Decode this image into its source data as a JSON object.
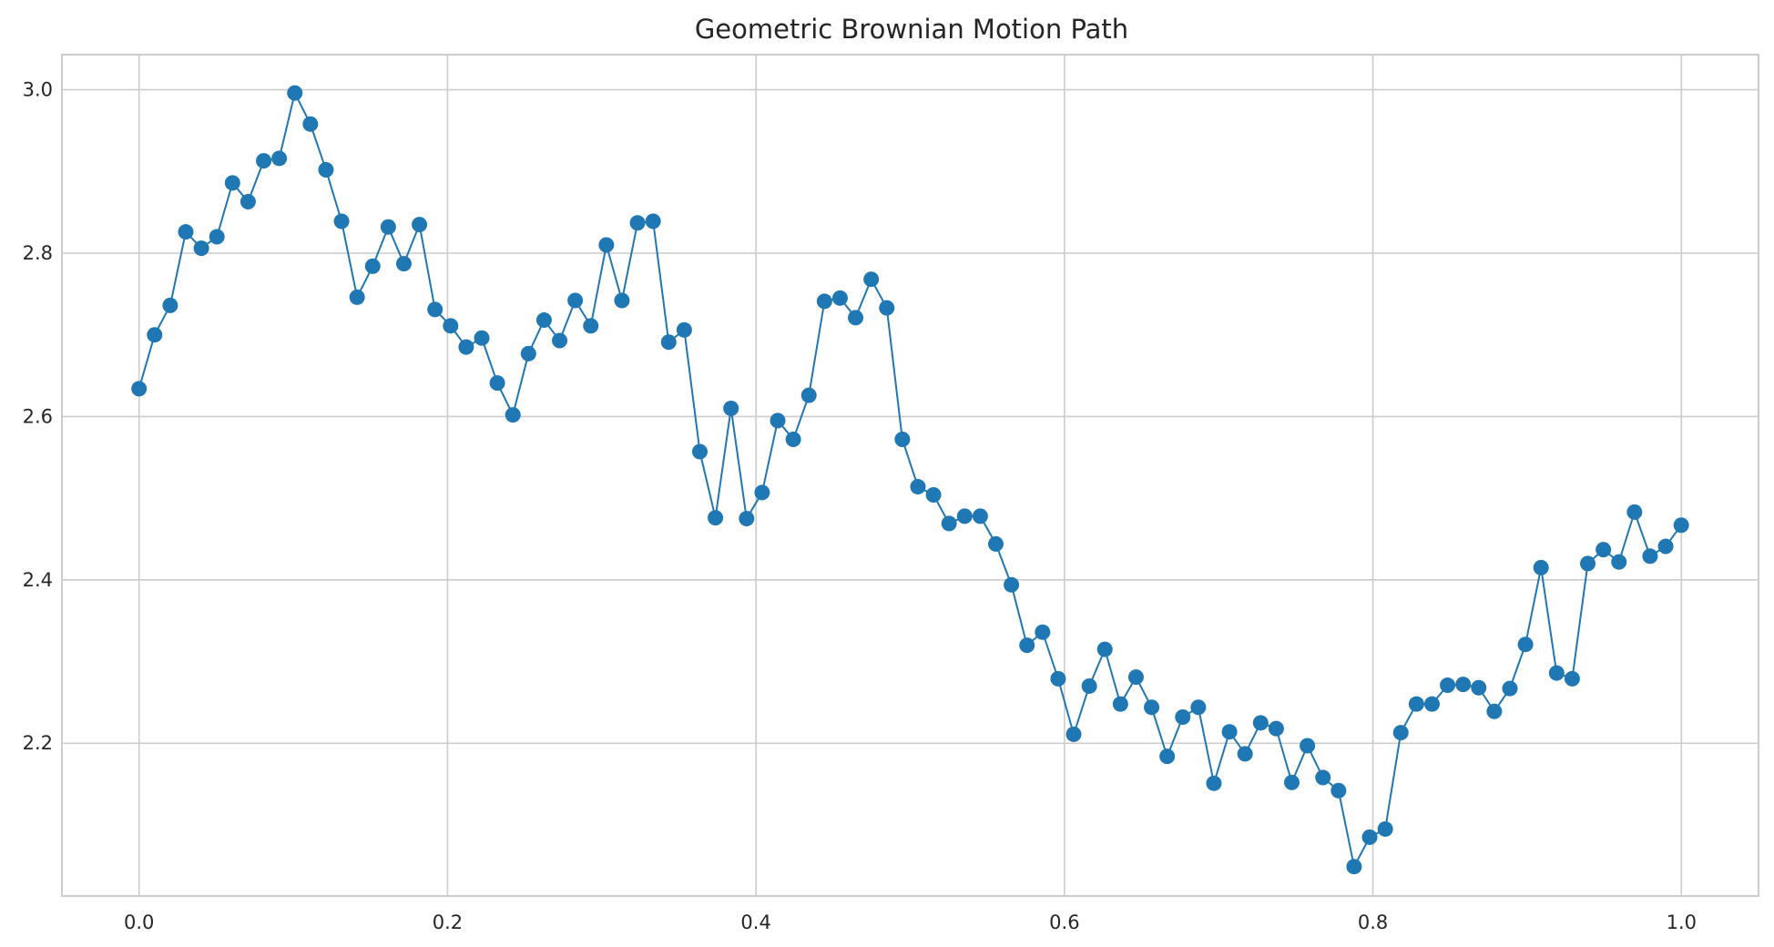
{
  "chart_data": {
    "type": "line",
    "title": "Geometric Brownian Motion Path",
    "xlabel": "",
    "ylabel": "",
    "xlim": [
      -0.05,
      1.05
    ],
    "ylim": [
      2.013,
      3.043
    ],
    "grid": true,
    "x_ticks": [
      0.0,
      0.2,
      0.4,
      0.6,
      0.8,
      1.0
    ],
    "x_tick_labels": [
      "0.0",
      "0.2",
      "0.4",
      "0.6",
      "0.8",
      "1.0"
    ],
    "y_ticks": [
      2.2,
      2.4,
      2.6,
      2.8,
      3.0
    ],
    "y_tick_labels": [
      "2.2",
      "2.4",
      "2.6",
      "2.8",
      "3.0"
    ],
    "marker": "circle",
    "color": "#1f77b4",
    "x_start": 0.0,
    "x_step": 0.0101,
    "series": [
      {
        "values": [
          2.634,
          2.7,
          2.736,
          2.826,
          2.806,
          2.82,
          2.886,
          2.863,
          2.913,
          2.916,
          2.996,
          2.958,
          2.902,
          2.839,
          2.746,
          2.784,
          2.832,
          2.787,
          2.835,
          2.731,
          2.711,
          2.685,
          2.696,
          2.641,
          2.602,
          2.677,
          2.718,
          2.693,
          2.742,
          2.711,
          2.81,
          2.742,
          2.837,
          2.839,
          2.691,
          2.706,
          2.557,
          2.476,
          2.61,
          2.475,
          2.507,
          2.595,
          2.572,
          2.626,
          2.741,
          2.745,
          2.721,
          2.768,
          2.733,
          2.572,
          2.514,
          2.504,
          2.469,
          2.478,
          2.478,
          2.444,
          2.394,
          2.32,
          2.336,
          2.279,
          2.211,
          2.27,
          2.315,
          2.248,
          2.281,
          2.244,
          2.184,
          2.232,
          2.244,
          2.151,
          2.214,
          2.187,
          2.225,
          2.218,
          2.152,
          2.197,
          2.158,
          2.142,
          2.049,
          2.085,
          2.095,
          2.213,
          2.248,
          2.248,
          2.271,
          2.272,
          2.268,
          2.239,
          2.267,
          2.321,
          2.415,
          2.286,
          2.279,
          2.42,
          2.437,
          2.422,
          2.483,
          2.429,
          2.441,
          2.467
        ]
      }
    ]
  }
}
